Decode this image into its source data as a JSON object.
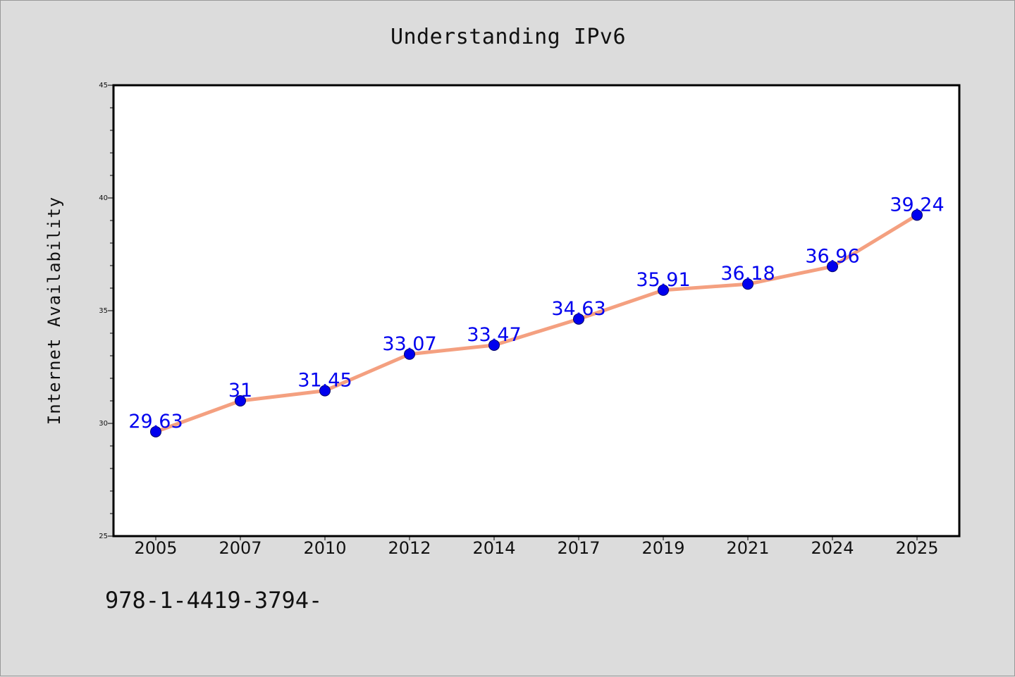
{
  "title": "Understanding IPv6",
  "footer": "978-1-4419-3794-",
  "colors": {
    "background": "#dcdcdc",
    "plot_background": "#ffffff",
    "line": "#f4a080",
    "marker": "#0000ee",
    "data_label": "#0000ee",
    "axis": "#000000"
  },
  "chart_data": {
    "type": "line",
    "title": "Understanding IPv6",
    "xlabel": "",
    "ylabel": "Internet Availability",
    "categories": [
      "2005",
      "2007",
      "2010",
      "2012",
      "2014",
      "2017",
      "2019",
      "2021",
      "2024",
      "2025"
    ],
    "series": [
      {
        "values": [
          29.63,
          31,
          31.45,
          33.07,
          33.47,
          34.63,
          35.91,
          36.18,
          36.96,
          39.24
        ],
        "data_labels": [
          "29.63",
          "31",
          "31.45",
          "33.07",
          "33.47",
          "34.63",
          "35.91",
          "36.18",
          "36.96",
          "39.24"
        ]
      }
    ],
    "ylim": [
      25,
      45
    ],
    "yticks": [
      25,
      30,
      35,
      40,
      45
    ],
    "grid": false,
    "legend": "none"
  }
}
